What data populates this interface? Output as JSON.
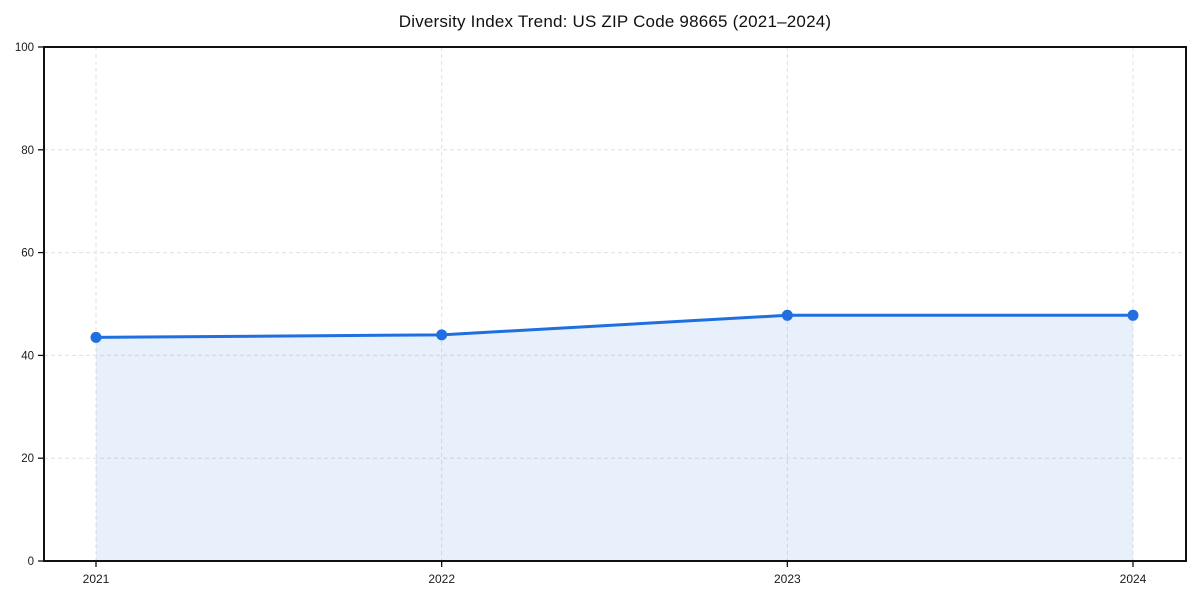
{
  "chart_data": {
    "type": "area",
    "title": "Diversity Index Trend: US ZIP Code 98665 (2021–2024)",
    "x": [
      "2021",
      "2022",
      "2023",
      "2024"
    ],
    "series": [
      {
        "name": "Diversity Index",
        "values": [
          43.5,
          44.0,
          47.8,
          47.8
        ]
      }
    ],
    "xlabel": "",
    "ylabel": "",
    "ylim": [
      0,
      100
    ],
    "yticks": [
      0,
      20,
      40,
      60,
      80,
      100
    ],
    "grid": "dashed, both axes",
    "legend": "none",
    "colors": {
      "line": "#1f6fe0",
      "marker": "#1f6fe0",
      "fill": "#1f6fe0",
      "fill_opacity": 0.1,
      "gridline": "#e0e0e0",
      "spine": "#111111",
      "tick_text": "#1a1a1a",
      "background": "#ffffff"
    }
  }
}
